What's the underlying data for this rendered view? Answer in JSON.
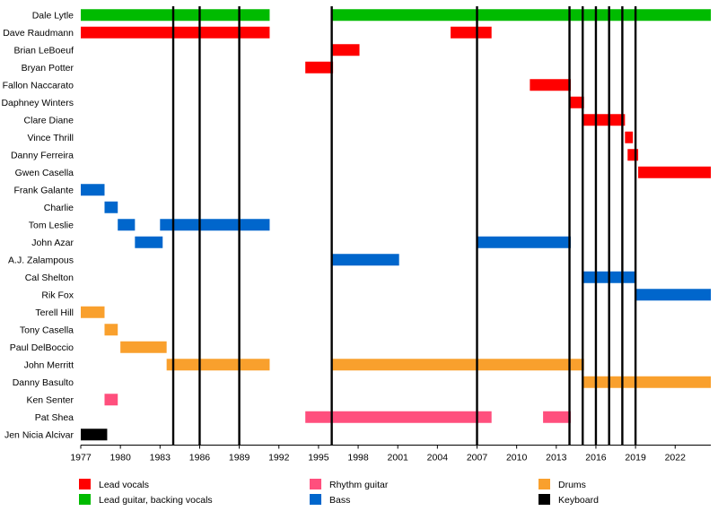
{
  "chart_data": {
    "type": "timeline",
    "x_range": [
      1977,
      2024.7
    ],
    "x_ticks": [
      1977,
      1980,
      1983,
      1986,
      1989,
      1992,
      1995,
      1998,
      2001,
      2004,
      2007,
      2010,
      2013,
      2016,
      2019,
      2022
    ],
    "grid": false,
    "legend_position": "bottom",
    "roles": [
      {
        "key": "lead_vocals",
        "name": "Lead vocals",
        "color": "#ff0000"
      },
      {
        "key": "lead_guitar",
        "name": "Lead guitar, backing vocals",
        "color": "#00bb00"
      },
      {
        "key": "rhythm_guitar",
        "name": "Rhythm guitar",
        "color": "#ff4f7d"
      },
      {
        "key": "bass",
        "name": "Bass",
        "color": "#0066cc"
      },
      {
        "key": "drums",
        "name": "Drums",
        "color": "#f9a02d"
      },
      {
        "key": "keyboard",
        "name": "Keyboard",
        "color": "#000000"
      }
    ],
    "members": [
      {
        "name": "Dale Lytle",
        "bars": [
          {
            "role": "lead_guitar",
            "start": 1977.0,
            "end": 1991.3
          },
          {
            "role": "lead_guitar",
            "start": 1996.0,
            "end": 2024.7
          }
        ]
      },
      {
        "name": "Dave Raudmann",
        "bars": [
          {
            "role": "lead_vocals",
            "start": 1977.0,
            "end": 1991.3
          },
          {
            "role": "lead_vocals",
            "start": 2005.0,
            "end": 2008.1
          }
        ]
      },
      {
        "name": "Brian LeBoeuf",
        "bars": [
          {
            "role": "lead_vocals",
            "start": 1996.0,
            "end": 1998.1
          }
        ]
      },
      {
        "name": "Bryan Potter",
        "bars": [
          {
            "role": "lead_vocals",
            "start": 1994.0,
            "end": 1996.1
          }
        ]
      },
      {
        "name": "Fallon Naccarato",
        "bars": [
          {
            "role": "lead_vocals",
            "start": 2011.0,
            "end": 2014.1
          }
        ]
      },
      {
        "name": "Daphney Winters",
        "bars": [
          {
            "role": "lead_vocals",
            "start": 2014.0,
            "end": 2015.1
          }
        ]
      },
      {
        "name": "Clare Diane",
        "bars": [
          {
            "role": "lead_vocals",
            "start": 2015.0,
            "end": 2018.2
          }
        ]
      },
      {
        "name": "Vince Thrill",
        "bars": [
          {
            "role": "lead_vocals",
            "start": 2018.2,
            "end": 2018.8
          }
        ]
      },
      {
        "name": "Danny Ferreira",
        "bars": [
          {
            "role": "lead_vocals",
            "start": 2018.4,
            "end": 2019.2
          }
        ]
      },
      {
        "name": "Gwen Casella",
        "bars": [
          {
            "role": "lead_vocals",
            "start": 2019.2,
            "end": 2024.7
          }
        ]
      },
      {
        "name": "Frank Galante",
        "bars": [
          {
            "role": "bass",
            "start": 1977.0,
            "end": 1978.8
          }
        ]
      },
      {
        "name": "Charlie",
        "bars": [
          {
            "role": "bass",
            "start": 1978.8,
            "end": 1979.8
          }
        ]
      },
      {
        "name": "Tom Leslie",
        "bars": [
          {
            "role": "bass",
            "start": 1979.8,
            "end": 1981.1
          },
          {
            "role": "bass",
            "start": 1983.0,
            "end": 1991.3
          }
        ]
      },
      {
        "name": "John Azar",
        "bars": [
          {
            "role": "bass",
            "start": 1981.1,
            "end": 1983.2
          },
          {
            "role": "bass",
            "start": 2007.0,
            "end": 2014.1
          }
        ]
      },
      {
        "name": "A.J. Zalampous",
        "bars": [
          {
            "role": "bass",
            "start": 1996.0,
            "end": 2001.1
          }
        ]
      },
      {
        "name": "Cal Shelton",
        "bars": [
          {
            "role": "bass",
            "start": 2015.0,
            "end": 2019.0
          }
        ]
      },
      {
        "name": "Rik Fox",
        "bars": [
          {
            "role": "bass",
            "start": 2019.0,
            "end": 2024.7
          }
        ]
      },
      {
        "name": "Terell Hill",
        "bars": [
          {
            "role": "drums",
            "start": 1977.0,
            "end": 1978.8
          }
        ]
      },
      {
        "name": "Tony Casella",
        "bars": [
          {
            "role": "drums",
            "start": 1978.8,
            "end": 1979.8
          }
        ]
      },
      {
        "name": "Paul DelBoccio",
        "bars": [
          {
            "role": "drums",
            "start": 1980.0,
            "end": 1983.5
          }
        ]
      },
      {
        "name": "John Merritt",
        "bars": [
          {
            "role": "drums",
            "start": 1983.5,
            "end": 1991.3
          },
          {
            "role": "drums",
            "start": 1996.0,
            "end": 2015.1
          }
        ]
      },
      {
        "name": "Danny Basulto",
        "bars": [
          {
            "role": "drums",
            "start": 2015.0,
            "end": 2024.7
          }
        ]
      },
      {
        "name": "Ken Senter",
        "bars": [
          {
            "role": "rhythm_guitar",
            "start": 1978.8,
            "end": 1979.8
          }
        ]
      },
      {
        "name": "Pat Shea",
        "bars": [
          {
            "role": "rhythm_guitar",
            "start": 1994.0,
            "end": 2008.1
          },
          {
            "role": "rhythm_guitar",
            "start": 2012.0,
            "end": 2014.1
          }
        ]
      },
      {
        "name": "Jen Nicia Alcivar",
        "bars": [
          {
            "role": "keyboard",
            "start": 1977.0,
            "end": 1979.0
          }
        ]
      }
    ],
    "event_lines": [
      1984,
      1986,
      1989,
      1996,
      2007,
      2014,
      2015,
      2016,
      2017,
      2018,
      2019
    ]
  }
}
